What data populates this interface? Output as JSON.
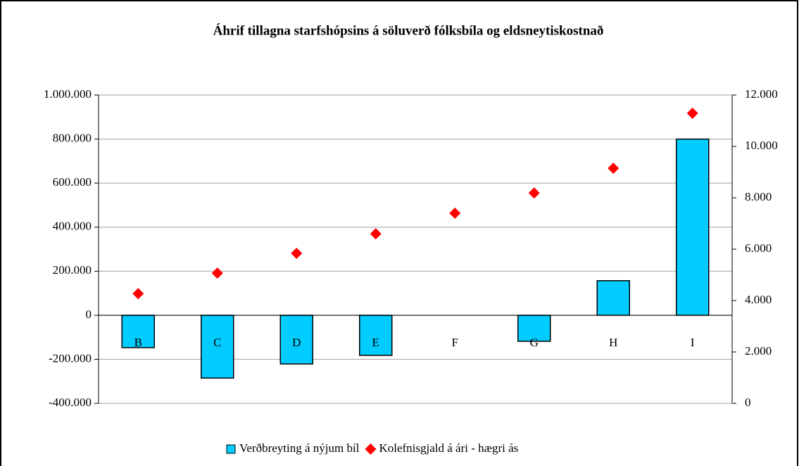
{
  "chart_data": {
    "type": "bar",
    "title": "Áhrif tillagna starfshópsins á söluverð fólksbíla og eldsneytiskostnað",
    "categories": [
      "B",
      "C",
      "D",
      "E",
      "F",
      "G",
      "H",
      "I"
    ],
    "series": [
      {
        "name": "Verðbreyting á nýjum bíl",
        "type": "bar",
        "color": "#00ccff",
        "axis": "y",
        "values": [
          -147000,
          -285000,
          -221000,
          -182000,
          0,
          -118000,
          157000,
          800000
        ]
      },
      {
        "name": "Kolefnisgjald á ári - hægri ás",
        "type": "scatter",
        "color": "#ff0000",
        "axis": "y2",
        "values": [
          4270,
          5070,
          5840,
          6600,
          7400,
          8190,
          9150,
          11290
        ]
      }
    ],
    "ylim": [
      -400000,
      1000000
    ],
    "yticks": [
      {
        "value": -400000,
        "label": "-400.000"
      },
      {
        "value": -200000,
        "label": "-200.000"
      },
      0,
      {
        "value": 200000,
        "label": "200.000"
      },
      {
        "value": 400000,
        "label": "400.000"
      },
      {
        "value": 600000,
        "label": "600.000"
      },
      {
        "value": 800000,
        "label": "800.000"
      },
      {
        "value": 1000000,
        "label": "1.000.000"
      }
    ],
    "y2lim": [
      0,
      12000
    ],
    "y2ticks": [
      0,
      {
        "value": 2000,
        "label": "2.000"
      },
      {
        "value": 4000,
        "label": "4.000"
      },
      {
        "value": 6000,
        "label": "6.000"
      },
      {
        "value": 8000,
        "label": "8.000"
      },
      {
        "value": 10000,
        "label": "10.000"
      },
      {
        "value": 12000,
        "label": "12.000"
      }
    ],
    "grid": true,
    "legend": "bottom"
  }
}
